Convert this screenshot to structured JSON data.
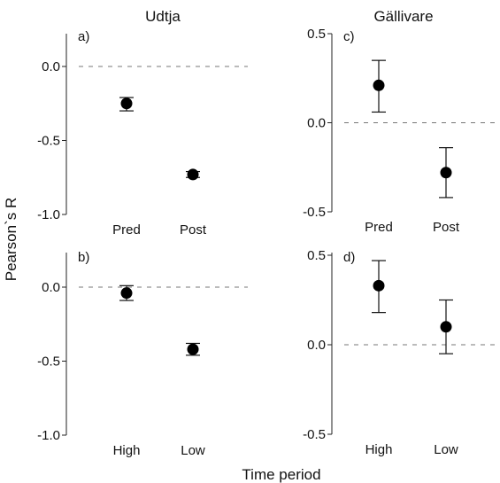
{
  "columns": [
    "Udtja",
    "Gällivare"
  ],
  "ylabel": "Pearson`s R",
  "xlabel": "Time period",
  "chart_data": [
    {
      "type": "scatter",
      "panel_label": "a)",
      "column": "Udtja",
      "categories": [
        "Pred",
        "Post"
      ],
      "values": [
        -0.25,
        -0.73
      ],
      "error_low": [
        -0.3,
        -0.75
      ],
      "error_high": [
        -0.21,
        -0.71
      ],
      "ylim": [
        -1.0,
        0.0
      ],
      "yticks": [
        0.0,
        -0.5,
        -1.0
      ],
      "ytick_labels": [
        "0.0",
        "-0.5",
        "-1.0"
      ],
      "reference_line": 0.0
    },
    {
      "type": "scatter",
      "panel_label": "c)",
      "column": "Gällivare",
      "categories": [
        "Pred",
        "Post"
      ],
      "values": [
        0.21,
        -0.28
      ],
      "error_low": [
        0.06,
        -0.42
      ],
      "error_high": [
        0.35,
        -0.14
      ],
      "ylim": [
        -0.5,
        0.5
      ],
      "yticks": [
        0.5,
        0.0,
        -0.5
      ],
      "ytick_labels": [
        "0.5",
        "0.0",
        "-0.5"
      ],
      "reference_line": 0.0
    },
    {
      "type": "scatter",
      "panel_label": "b)",
      "column": "Udtja",
      "categories": [
        "High",
        "Low"
      ],
      "values": [
        -0.04,
        -0.42
      ],
      "error_low": [
        -0.09,
        -0.46
      ],
      "error_high": [
        0.01,
        -0.38
      ],
      "ylim": [
        -1.0,
        0.0
      ],
      "yticks": [
        0.0,
        -0.5,
        -1.0
      ],
      "ytick_labels": [
        "0.0",
        "-0.5",
        "-1.0"
      ],
      "reference_line": 0.0
    },
    {
      "type": "scatter",
      "panel_label": "d)",
      "column": "Gällivare",
      "categories": [
        "High",
        "Low"
      ],
      "values": [
        0.33,
        0.1
      ],
      "error_low": [
        0.18,
        -0.05
      ],
      "error_high": [
        0.47,
        0.25
      ],
      "ylim": [
        -0.5,
        0.5
      ],
      "yticks": [
        0.5,
        0.0,
        -0.5
      ],
      "ytick_labels": [
        "0.5",
        "0.0",
        "-0.5"
      ],
      "reference_line": 0.0
    }
  ]
}
